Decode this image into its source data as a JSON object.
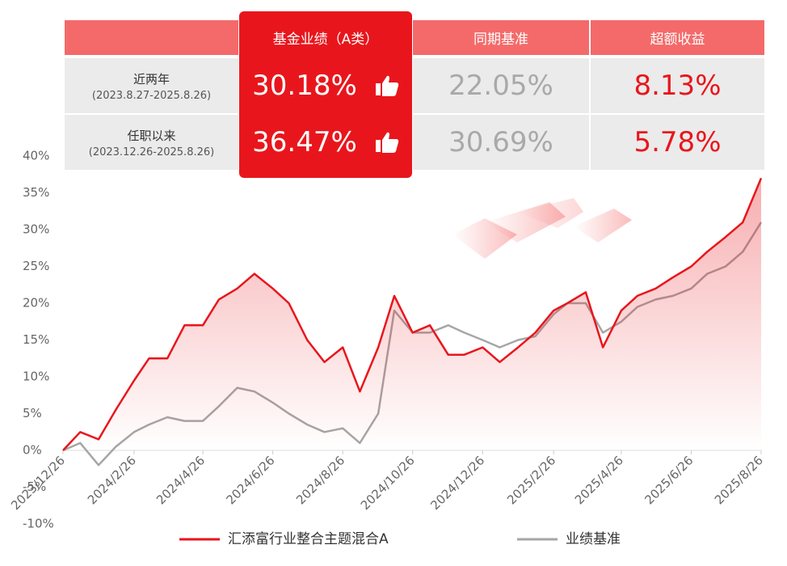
{
  "table": {
    "headers": [
      "基金业绩（A类）",
      "同期基准",
      "超额收益"
    ],
    "rows": [
      {
        "label": "近两年",
        "period": "(2023.8.27-2025.8.26)",
        "values": [
          "30.18%",
          "22.05%",
          "8.13%"
        ]
      },
      {
        "label": "任职以来",
        "period": "(2023.12.26-2025.8.26)",
        "values": [
          "36.47%",
          "30.69%",
          "5.78%"
        ]
      }
    ]
  },
  "chart_data": {
    "type": "line",
    "x": [
      "2023/12/26",
      "2024/1/10",
      "2024/1/26",
      "2024/2/10",
      "2024/2/26",
      "2024/3/10",
      "2024/3/26",
      "2024/4/10",
      "2024/4/26",
      "2024/5/10",
      "2024/5/26",
      "2024/6/10",
      "2024/6/26",
      "2024/7/10",
      "2024/7/26",
      "2024/8/10",
      "2024/8/26",
      "2024/9/10",
      "2024/9/26",
      "2024/10/10",
      "2024/10/26",
      "2024/11/10",
      "2024/11/26",
      "2024/12/10",
      "2024/12/26",
      "2025/1/10",
      "2025/1/26",
      "2025/2/10",
      "2025/2/26",
      "2025/3/10",
      "2025/3/26",
      "2025/4/10",
      "2025/4/26",
      "2025/5/10",
      "2025/5/26",
      "2025/6/10",
      "2025/6/26",
      "2025/7/10",
      "2025/7/26",
      "2025/8/10",
      "2025/8/26"
    ],
    "series": [
      {
        "name": "汇添富行业整合主题混合A",
        "color": "#e8161c",
        "values": [
          0,
          2.5,
          1.5,
          5.5,
          9.5,
          12.5,
          12.5,
          17,
          17,
          20.5,
          22,
          24,
          22,
          20,
          15,
          12,
          14,
          8,
          14,
          21,
          16,
          17,
          13,
          13,
          14,
          12,
          14,
          16,
          19,
          20,
          21.5,
          14,
          19,
          21,
          22,
          23.5,
          25,
          27,
          29,
          31,
          37
        ]
      },
      {
        "name": "业绩基准",
        "color": "#a6a6a6",
        "values": [
          0,
          1,
          -2,
          0.5,
          2.5,
          3.5,
          4.5,
          4,
          4,
          6,
          8.5,
          8,
          6.5,
          5,
          3.5,
          2.5,
          3,
          1,
          5,
          19,
          16,
          16,
          17,
          16,
          15,
          14,
          15,
          15.5,
          18.5,
          20,
          20,
          16,
          17.5,
          19.5,
          20.5,
          21,
          22,
          24,
          25,
          27,
          31
        ]
      }
    ],
    "xlim": [
      "2023/12/26",
      "2025/8/26"
    ],
    "xticks": [
      "2023/12/26",
      "2024/2/26",
      "2024/4/26",
      "2024/6/26",
      "2024/8/26",
      "2024/10/26",
      "2024/12/26",
      "2025/2/26",
      "2025/4/26",
      "2025/6/26",
      "2025/8/26"
    ],
    "ylim": [
      -10,
      40
    ],
    "yticks": [
      {
        "value": -10,
        "label": "-10%"
      },
      {
        "value": -5,
        "label": "-5%"
      },
      {
        "value": 0,
        "label": "0%"
      },
      {
        "value": 5,
        "label": "5%"
      },
      {
        "value": 10,
        "label": "10%"
      },
      {
        "value": 15,
        "label": "15%"
      },
      {
        "value": 20,
        "label": "20%"
      },
      {
        "value": 25,
        "label": "25%"
      },
      {
        "value": 30,
        "label": "30%"
      },
      {
        "value": 35,
        "label": "35%"
      },
      {
        "value": 40,
        "label": "40%"
      }
    ],
    "grid": false
  }
}
